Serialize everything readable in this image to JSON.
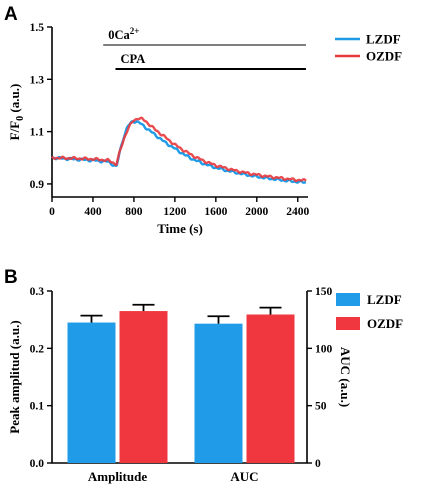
{
  "panels": {
    "a": "A",
    "b": "B"
  },
  "chart_data": [
    {
      "type": "line",
      "panel": "A",
      "xlabel": "Time (s)",
      "ylabel": "F/F",
      "ylabel_sub": "0",
      "ylabel_suffix": " (a.u.)",
      "xlim": [
        0,
        2500
      ],
      "ylim": [
        0.85,
        1.5
      ],
      "xticks": [
        0,
        400,
        800,
        1200,
        1600,
        2000,
        2400
      ],
      "yticks": [
        0.9,
        1.1,
        1.3,
        1.5
      ],
      "annotations": [
        {
          "label": "0Ca",
          "sup": "2+",
          "start": 500,
          "end": 2480,
          "color": "#7f7f7f"
        },
        {
          "label": "CPA",
          "start": 620,
          "end": 2480,
          "color": "#000000"
        }
      ],
      "legend_position": "top-right",
      "series": [
        {
          "name": "LZDF",
          "color": "#1f9be8",
          "points": [
            [
              0,
              1.0
            ],
            [
              200,
              0.995
            ],
            [
              400,
              0.99
            ],
            [
              550,
              0.985
            ],
            [
              630,
              0.965
            ],
            [
              660,
              1.02
            ],
            [
              700,
              1.08
            ],
            [
              740,
              1.12
            ],
            [
              780,
              1.137
            ],
            [
              820,
              1.14
            ],
            [
              860,
              1.132
            ],
            [
              900,
              1.12
            ],
            [
              1000,
              1.09
            ],
            [
              1100,
              1.06
            ],
            [
              1200,
              1.035
            ],
            [
              1300,
              1.01
            ],
            [
              1400,
              0.99
            ],
            [
              1500,
              0.975
            ],
            [
              1600,
              0.962
            ],
            [
              1700,
              0.952
            ],
            [
              1800,
              0.943
            ],
            [
              1900,
              0.935
            ],
            [
              2000,
              0.928
            ],
            [
              2100,
              0.922
            ],
            [
              2200,
              0.917
            ],
            [
              2300,
              0.912
            ],
            [
              2400,
              0.908
            ],
            [
              2480,
              0.906
            ]
          ]
        },
        {
          "name": "OZDF",
          "color": "#e8383d",
          "points": [
            [
              0,
              1.0
            ],
            [
              200,
              0.998
            ],
            [
              400,
              0.995
            ],
            [
              550,
              0.99
            ],
            [
              630,
              0.975
            ],
            [
              660,
              1.02
            ],
            [
              700,
              1.07
            ],
            [
              740,
              1.11
            ],
            [
              790,
              1.14
            ],
            [
              840,
              1.152
            ],
            [
              880,
              1.148
            ],
            [
              920,
              1.138
            ],
            [
              1000,
              1.11
            ],
            [
              1100,
              1.08
            ],
            [
              1200,
              1.05
            ],
            [
              1300,
              1.025
            ],
            [
              1400,
              1.003
            ],
            [
              1500,
              0.985
            ],
            [
              1600,
              0.971
            ],
            [
              1700,
              0.96
            ],
            [
              1800,
              0.95
            ],
            [
              1900,
              0.942
            ],
            [
              2000,
              0.935
            ],
            [
              2100,
              0.929
            ],
            [
              2200,
              0.924
            ],
            [
              2300,
              0.919
            ],
            [
              2400,
              0.915
            ],
            [
              2480,
              0.913
            ]
          ]
        }
      ]
    },
    {
      "type": "bar",
      "panel": "B",
      "categories": [
        "Amplitude",
        "AUC"
      ],
      "ylabel": "Peak amplitud (a.u.)",
      "y2label": "AUC (a.u.)",
      "ylim": [
        0,
        0.3
      ],
      "y2lim": [
        0,
        150
      ],
      "yticks": [
        0.0,
        0.1,
        0.2,
        0.3
      ],
      "y2ticks": [
        0,
        50,
        100,
        150
      ],
      "legend_position": "right",
      "series": [
        {
          "name": "LZDF",
          "color": "#1f9be8",
          "values": [
            0.245,
            121.5
          ],
          "errors": [
            0.012,
            6.5
          ]
        },
        {
          "name": "OZDF",
          "color": "#f0363f",
          "values": [
            0.265,
            129.5
          ],
          "errors": [
            0.011,
            6.0
          ]
        }
      ]
    }
  ]
}
